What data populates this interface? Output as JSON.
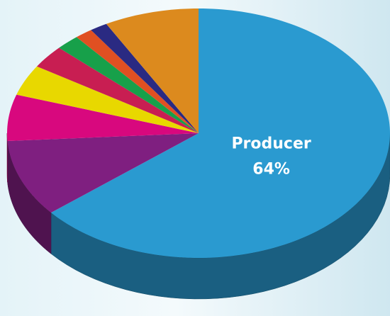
{
  "chart_data": {
    "type": "pie3d",
    "categories": [
      "Producer",
      null,
      null,
      null,
      null,
      null,
      null,
      null,
      null
    ],
    "values": [
      64,
      10,
      6,
      4,
      3,
      2,
      1.5,
      1.5,
      8
    ],
    "value_labels": [
      "64%",
      null,
      null,
      null,
      null,
      null,
      null,
      null,
      null
    ],
    "colors": [
      "#2a9ad0",
      "#7f1f80",
      "#d8087e",
      "#e8d800",
      "#c81e52",
      "#17a04a",
      "#e05022",
      "#2a2a82",
      "#dc8a1e"
    ]
  }
}
